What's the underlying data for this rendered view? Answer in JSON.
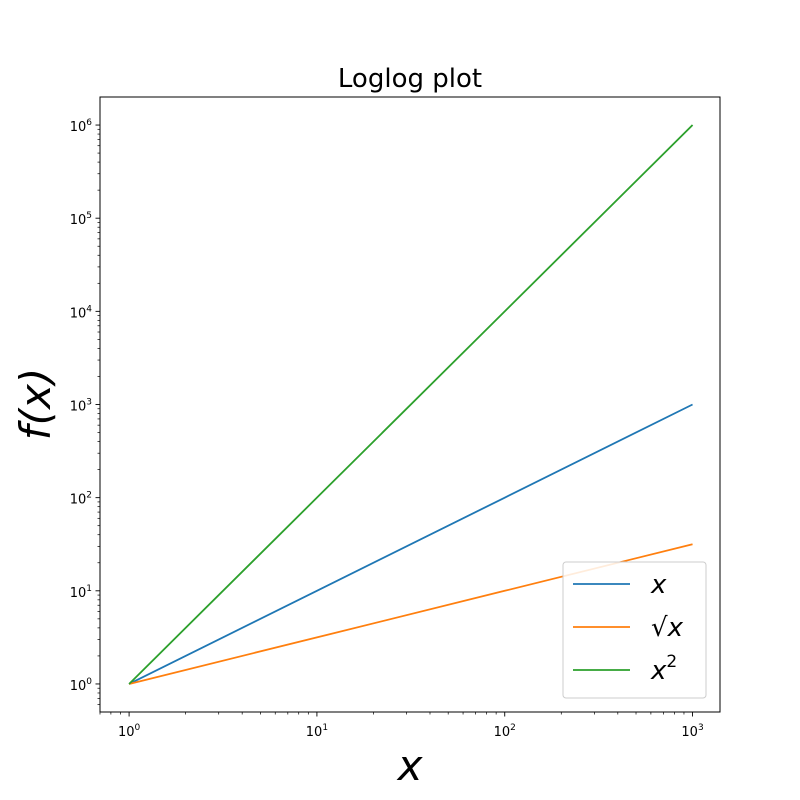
{
  "chart_data": {
    "type": "line",
    "title": "Loglog plot",
    "xlabel": "x",
    "ylabel": "f(x)",
    "xscale": "log",
    "yscale": "log",
    "xlim": [
      0.7,
      1400
    ],
    "ylim": [
      0.5,
      2000000
    ],
    "x": [
      1,
      10,
      100,
      1000
    ],
    "xticks": [
      {
        "base": "10",
        "exp": "0",
        "value": 1
      },
      {
        "base": "10",
        "exp": "1",
        "value": 10
      },
      {
        "base": "10",
        "exp": "2",
        "value": 100
      },
      {
        "base": "10",
        "exp": "3",
        "value": 1000
      }
    ],
    "yticks": [
      {
        "base": "10",
        "exp": "0",
        "value": 1
      },
      {
        "base": "10",
        "exp": "1",
        "value": 10
      },
      {
        "base": "10",
        "exp": "2",
        "value": 100
      },
      {
        "base": "10",
        "exp": "3",
        "value": 1000
      },
      {
        "base": "10",
        "exp": "4",
        "value": 10000
      },
      {
        "base": "10",
        "exp": "5",
        "value": 100000
      },
      {
        "base": "10",
        "exp": "6",
        "value": 1000000
      }
    ],
    "series": [
      {
        "name": "x",
        "color": "#1f77b4",
        "values": [
          1,
          10,
          100,
          1000
        ]
      },
      {
        "name": "√x",
        "color": "#ff7f0e",
        "values": [
          1,
          3.162,
          10,
          31.62
        ]
      },
      {
        "name": "x²",
        "color": "#2ca02c",
        "values": [
          1,
          100,
          10000,
          1000000
        ]
      }
    ],
    "legend": {
      "position": "lower-right",
      "entries": [
        {
          "main": "x",
          "prefix": "",
          "sup": ""
        },
        {
          "main": "x",
          "prefix": "√",
          "sup": ""
        },
        {
          "main": "x",
          "prefix": "",
          "sup": "2"
        }
      ]
    },
    "grid": false
  }
}
